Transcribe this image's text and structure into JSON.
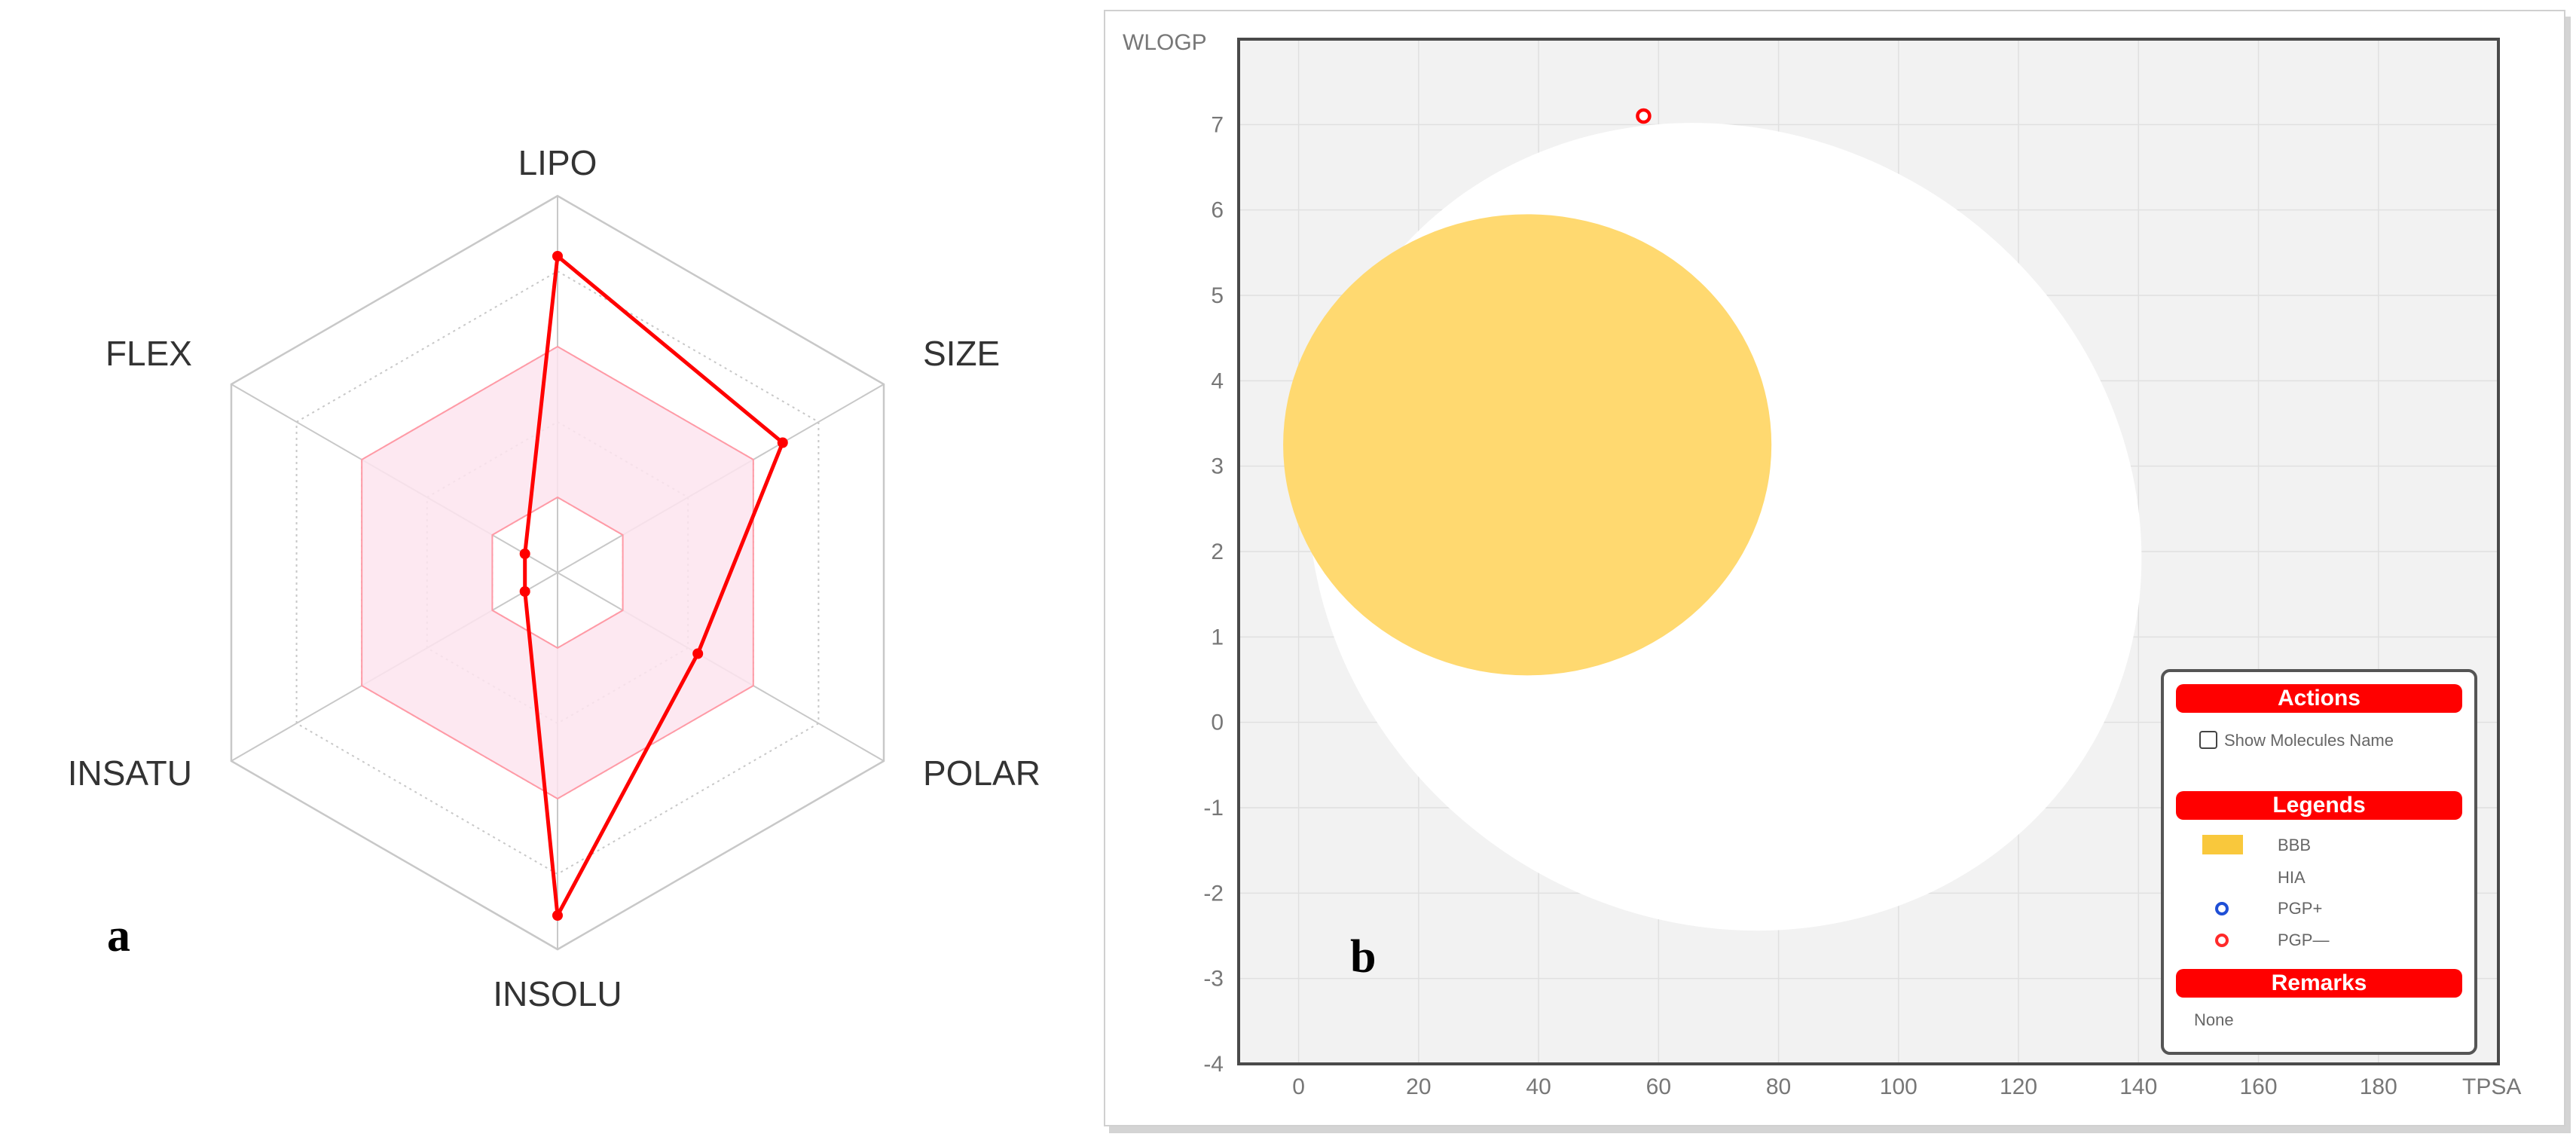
{
  "chart_data": [
    {
      "type": "radar",
      "panel_letter": "a",
      "axes": [
        "LIPO",
        "SIZE",
        "POLAR",
        "INSOLU",
        "INSATU",
        "FLEX"
      ],
      "range": [
        0,
        1
      ],
      "levels": 5,
      "optimal_range": [
        0.2,
        0.6
      ],
      "values": [
        0.84,
        0.69,
        0.43,
        0.91,
        0.1,
        0.1
      ],
      "colors": {
        "line": "#ff0000",
        "optimal_fill": "#fde4ee",
        "optimal_stroke": "#ff9aa6",
        "grid": "#c8c8c8"
      }
    },
    {
      "type": "scatter",
      "panel_letter": "b",
      "xlabel": "TPSA",
      "ylabel": "WLOGP",
      "xlim": [
        -10,
        200
      ],
      "ylim": [
        -4,
        8
      ],
      "xticks": [
        0,
        20,
        40,
        60,
        80,
        100,
        120,
        140,
        160,
        180
      ],
      "yticks": [
        -4,
        -3,
        -2,
        -1,
        0,
        1,
        2,
        3,
        4,
        5,
        6,
        7
      ],
      "grid": true,
      "regions": [
        {
          "name": "HIA",
          "shape": "ellipse",
          "center": [
            71.05,
            2.29
          ],
          "radii": [
            71.2,
            4.6
          ],
          "rotation_deg": 34,
          "color": "#ffffff"
        },
        {
          "name": "BBB",
          "shape": "ellipse",
          "center": [
            38.12,
            3.25
          ],
          "radii": [
            40.7,
            2.7
          ],
          "color": "#ffd970"
        }
      ],
      "points": [
        {
          "x": 57.5,
          "y": 7.1,
          "pgp": "PGP-",
          "color": "#ff0000"
        }
      ],
      "legend": {
        "actions_title": "Actions",
        "show_names_label": "Show Molecules Name",
        "show_names_checked": false,
        "legends_title": "Legends",
        "items": [
          {
            "label": "BBB",
            "symbol": "rect",
            "color": "#f9c83c"
          },
          {
            "label": "HIA",
            "symbol": "rect",
            "color": "#ffffff"
          },
          {
            "label": "PGP+",
            "symbol": "ring",
            "color": "#1f4fd6"
          },
          {
            "label": "PGP—",
            "symbol": "ring",
            "color": "#ff2a2a"
          }
        ],
        "remarks_title": "Remarks",
        "remarks_text": "None"
      },
      "colors": {
        "plot_bg": "#f2f2f2",
        "accent": "#ff0000",
        "frame": "#4a4a4a"
      }
    }
  ]
}
